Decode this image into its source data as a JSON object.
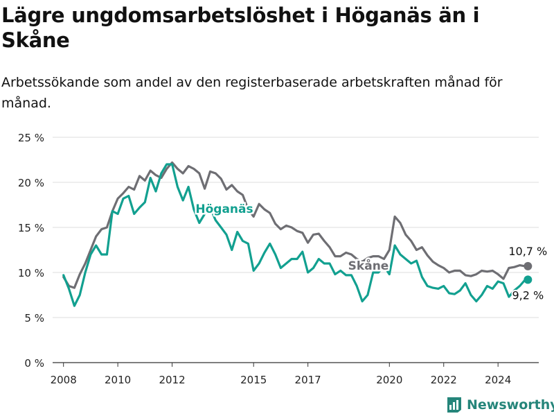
{
  "header": {
    "title": "Lägre ungdomsarbetslöshet i Höganäs än i Skåne",
    "subtitle": "Arbetssökande som andel av den registerbaserade arbetskraften månad för månad."
  },
  "brand": {
    "name": "Newsworthy"
  },
  "colors": {
    "hoganas": "#12a090",
    "skane": "#6e6e73",
    "grid": "#dddddd",
    "axis": "#333333"
  },
  "chart_data": {
    "type": "line",
    "title": "Lägre ungdomsarbetslöshet i Höganäs än i Skåne",
    "subtitle": "Arbetssökande som andel av den registerbaserade arbetskraften månad för månad.",
    "x_unit": "year (decimal)",
    "xlim": [
      2007.6,
      2025.5
    ],
    "ylim": [
      0,
      25
    ],
    "yticks": [
      0,
      5,
      10,
      15,
      20,
      25
    ],
    "ytick_labels": [
      "0 %",
      "5 %",
      "10 %",
      "15 %",
      "20 %",
      "25 %"
    ],
    "xticks": [
      2008,
      2010,
      2012,
      2015,
      2017,
      2020,
      2022,
      2024
    ],
    "xtick_labels": [
      "2008",
      "2010",
      "2012",
      "2015",
      "2017",
      "2020",
      "2022",
      "2024"
    ],
    "grid": true,
    "series": [
      {
        "name": "Skåne",
        "color": "#6e6e73",
        "end_label": "10,7 %",
        "label_at": [
          2010.9,
          11.0
        ],
        "x": [
          2008.0,
          2008.2,
          2008.4,
          2008.6,
          2008.8,
          2009.0,
          2009.2,
          2009.4,
          2009.6,
          2009.8,
          2009.9,
          2010.0,
          2010.2,
          2010.4,
          2010.6,
          2010.8,
          2011.0,
          2011.2,
          2011.4,
          2011.6,
          2011.8,
          2012.0,
          2012.2,
          2012.4,
          2012.6,
          2012.8,
          2013.0,
          2013.2,
          2013.4,
          2013.6,
          2013.8,
          2014.0,
          2014.2,
          2014.4,
          2014.6,
          2014.8,
          2015.0,
          2015.2,
          2015.4,
          2015.6,
          2015.8,
          2016.0,
          2016.2,
          2016.4,
          2016.6,
          2016.8,
          2017.0,
          2017.2,
          2017.4,
          2017.6,
          2017.8,
          2018.0,
          2018.2,
          2018.4,
          2018.6,
          2018.8,
          2019.0,
          2019.2,
          2019.4,
          2019.6,
          2019.8,
          2020.0,
          2020.2,
          2020.4,
          2020.6,
          2020.8,
          2021.0,
          2021.2,
          2021.4,
          2021.6,
          2021.8,
          2022.0,
          2022.2,
          2022.4,
          2022.6,
          2022.8,
          2023.0,
          2023.2,
          2023.4,
          2023.6,
          2023.8,
          2024.0,
          2024.2,
          2024.4,
          2024.6,
          2024.8,
          2025.0,
          2025.1
        ],
        "y": [
          9.5,
          8.5,
          8.3,
          9.8,
          11.0,
          12.5,
          14.0,
          14.8,
          15.0,
          16.8,
          17.5,
          18.2,
          18.8,
          19.5,
          19.2,
          20.7,
          20.2,
          21.3,
          20.8,
          20.5,
          21.5,
          22.2,
          21.5,
          21.0,
          21.8,
          21.5,
          21.0,
          19.3,
          21.2,
          21.0,
          20.4,
          19.2,
          19.7,
          19.0,
          18.6,
          17.0,
          16.2,
          17.6,
          17.0,
          16.6,
          15.4,
          14.8,
          15.2,
          15.0,
          14.6,
          14.4,
          13.3,
          14.2,
          14.3,
          13.5,
          12.8,
          11.8,
          11.8,
          12.2,
          12.0,
          11.5,
          11.2,
          11.6,
          11.8,
          11.8,
          11.5,
          12.5,
          16.2,
          15.5,
          14.2,
          13.5,
          12.5,
          12.8,
          11.9,
          11.2,
          10.8,
          10.5,
          10.0,
          10.2,
          10.2,
          9.7,
          9.6,
          9.8,
          10.2,
          10.1,
          10.2,
          9.8,
          9.3,
          10.5,
          10.6,
          10.8,
          10.7,
          10.7
        ]
      },
      {
        "name": "Höganäs",
        "color": "#12a090",
        "end_label": "9,2 %",
        "label_at": [
          2012.6,
          17.5
        ],
        "x": [
          2008.0,
          2008.2,
          2008.4,
          2008.6,
          2008.8,
          2009.0,
          2009.2,
          2009.4,
          2009.6,
          2009.8,
          2010.0,
          2010.2,
          2010.4,
          2010.6,
          2010.8,
          2011.0,
          2011.2,
          2011.4,
          2011.6,
          2011.8,
          2012.0,
          2012.2,
          2012.4,
          2012.6,
          2012.8,
          2013.0,
          2013.2,
          2013.4,
          2013.6,
          2013.8,
          2014.0,
          2014.2,
          2014.4,
          2014.6,
          2014.8,
          2015.0,
          2015.2,
          2015.4,
          2015.6,
          2015.8,
          2016.0,
          2016.2,
          2016.4,
          2016.6,
          2016.8,
          2017.0,
          2017.2,
          2017.4,
          2017.6,
          2017.8,
          2018.0,
          2018.2,
          2018.4,
          2018.6,
          2018.8,
          2019.0,
          2019.2,
          2019.4,
          2019.6,
          2019.8,
          2020.0,
          2020.2,
          2020.4,
          2020.6,
          2020.8,
          2021.0,
          2021.2,
          2021.4,
          2021.6,
          2021.8,
          2022.0,
          2022.2,
          2022.4,
          2022.6,
          2022.8,
          2023.0,
          2023.2,
          2023.4,
          2023.6,
          2023.8,
          2024.0,
          2024.2,
          2024.4,
          2024.6,
          2024.8,
          2025.0,
          2025.1
        ],
        "y": [
          9.7,
          8.2,
          6.3,
          7.5,
          10.0,
          12.0,
          13.0,
          12.0,
          12.0,
          16.8,
          16.5,
          18.2,
          18.5,
          16.5,
          17.2,
          17.8,
          20.5,
          19.0,
          21.0,
          22.0,
          22.0,
          19.5,
          18.0,
          19.5,
          17.0,
          15.5,
          16.5,
          17.2,
          15.8,
          15.0,
          14.2,
          12.5,
          14.5,
          13.5,
          13.2,
          10.2,
          11.0,
          12.2,
          13.2,
          12.0,
          10.5,
          11.0,
          11.5,
          11.5,
          12.3,
          10.0,
          10.5,
          11.5,
          11.0,
          11.0,
          9.8,
          10.2,
          9.7,
          9.7,
          8.5,
          6.8,
          7.5,
          10.0,
          10.0,
          10.7,
          9.8,
          13.0,
          12.0,
          11.5,
          11.0,
          11.3,
          9.5,
          8.5,
          8.3,
          8.2,
          8.5,
          7.7,
          7.6,
          8.0,
          8.8,
          7.5,
          6.8,
          7.5,
          8.5,
          8.2,
          9.0,
          8.8,
          7.3,
          8.0,
          8.5,
          9.2,
          9.2
        ]
      }
    ]
  }
}
